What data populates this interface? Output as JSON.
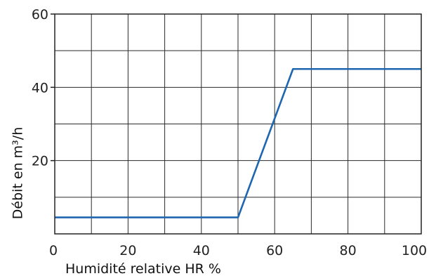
{
  "chart_data": {
    "type": "line",
    "xlabel": "Humidité relative HR %",
    "ylabel": "Débit en m³/h",
    "xlim": [
      0,
      100
    ],
    "ylim": [
      0,
      60
    ],
    "x_ticks": [
      0,
      20,
      40,
      60,
      80,
      100
    ],
    "x_tick_labels": [
      "0",
      "20",
      "40",
      "60",
      "80",
      "100"
    ],
    "y_ticks": [
      20,
      40,
      60
    ],
    "y_tick_labels": [
      "20",
      "40",
      "60"
    ],
    "grid": true,
    "grid_x_step": 10,
    "grid_y_step": 10,
    "series": [
      {
        "x": [
          0,
          50,
          65,
          100
        ],
        "y": [
          4.5,
          4.5,
          45,
          45
        ],
        "color": "#1f66b0"
      }
    ]
  }
}
